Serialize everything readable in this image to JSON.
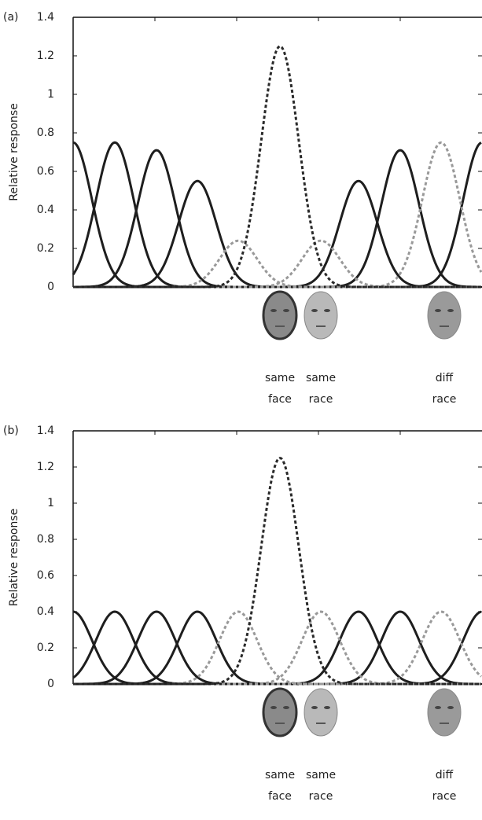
{
  "chart_data": [
    {
      "type": "tuning-curves",
      "panel_label": "(a)",
      "ylabel": "Relative response",
      "ylim": [
        0,
        1.4
      ],
      "yticks": [
        0,
        0.2,
        0.4,
        0.6,
        0.8,
        1,
        1.2,
        1.4
      ],
      "xlim": [
        0,
        5
      ],
      "tuning_width": 0.23,
      "series": [
        {
          "color": "#1e1e1e",
          "dash": false,
          "center": 0,
          "peak": 0.75
        },
        {
          "color": "#1e1e1e",
          "dash": false,
          "center": 0.51,
          "peak": 0.75
        },
        {
          "color": "#1e1e1e",
          "dash": false,
          "center": 1.02,
          "peak": 0.71
        },
        {
          "color": "#1e1e1e",
          "dash": false,
          "center": 1.52,
          "peak": 0.55
        },
        {
          "color": "#1e1e1e",
          "dash": false,
          "center": 3.49,
          "peak": 0.55
        },
        {
          "color": "#1e1e1e",
          "dash": false,
          "center": 4.0,
          "peak": 0.71
        },
        {
          "color": "#1e1e1e",
          "dash": false,
          "center": 5.0,
          "peak": 0.75
        },
        {
          "color": "#999999",
          "dash": true,
          "center": 2.02,
          "peak": 0.24
        },
        {
          "color": "#999999",
          "dash": true,
          "center": 3.03,
          "peak": 0.24
        },
        {
          "color": "#999999",
          "dash": true,
          "center": 4.5,
          "peak": 0.75
        },
        {
          "color": "#2a2a2a",
          "dash": true,
          "center": 2.53,
          "peak": 1.25
        }
      ],
      "stimuli": [
        [
          "same",
          "face"
        ],
        [
          "same",
          "race"
        ],
        [
          "diff",
          "race"
        ]
      ]
    },
    {
      "type": "tuning-curves",
      "panel_label": "(b)",
      "ylabel": "Relative response",
      "ylim": [
        0,
        1.4
      ],
      "yticks": [
        0,
        0.2,
        0.4,
        0.6,
        0.8,
        1,
        1.2,
        1.4
      ],
      "xlim": [
        0,
        5
      ],
      "tuning_width": 0.23,
      "series": [
        {
          "color": "#1e1e1e",
          "dash": false,
          "center": 0,
          "peak": 0.4
        },
        {
          "color": "#1e1e1e",
          "dash": false,
          "center": 0.51,
          "peak": 0.4
        },
        {
          "color": "#1e1e1e",
          "dash": false,
          "center": 1.02,
          "peak": 0.4
        },
        {
          "color": "#1e1e1e",
          "dash": false,
          "center": 1.52,
          "peak": 0.4
        },
        {
          "color": "#1e1e1e",
          "dash": false,
          "center": 3.49,
          "peak": 0.4
        },
        {
          "color": "#1e1e1e",
          "dash": false,
          "center": 4.0,
          "peak": 0.4
        },
        {
          "color": "#1e1e1e",
          "dash": false,
          "center": 5.0,
          "peak": 0.4
        },
        {
          "color": "#999999",
          "dash": true,
          "center": 2.02,
          "peak": 0.4
        },
        {
          "color": "#999999",
          "dash": true,
          "center": 3.03,
          "peak": 0.4
        },
        {
          "color": "#999999",
          "dash": true,
          "center": 4.5,
          "peak": 0.4
        },
        {
          "color": "#2a2a2a",
          "dash": true,
          "center": 2.53,
          "peak": 1.25
        }
      ],
      "stimuli": [
        [
          "same",
          "face"
        ],
        [
          "same",
          "race"
        ],
        [
          "diff",
          "race"
        ]
      ]
    }
  ]
}
